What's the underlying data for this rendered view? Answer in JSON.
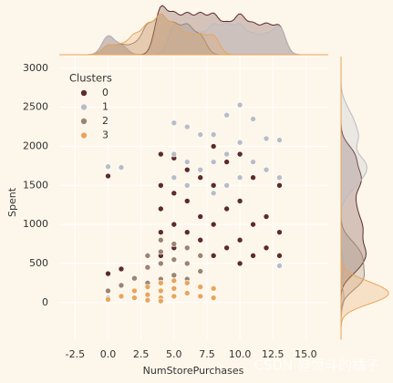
{
  "chart_data": {
    "type": "scatter",
    "x_label": "NumStorePurchases",
    "y_label": "Spent",
    "legend_title": "Clusters",
    "legend": "upper left",
    "grid": true,
    "xlim": [
      -3.7,
      16.7
    ],
    "ylim": [
      -470,
      3150
    ],
    "xticks": [
      -2.5,
      {
        "value": 0,
        "label": "0.0"
      },
      2.5,
      {
        "value": 5,
        "label": "5.0"
      },
      7.5,
      {
        "value": 10,
        "label": "10.0"
      },
      12.5,
      {
        "value": 15,
        "label": "15.0"
      }
    ],
    "yticks": [
      0,
      500,
      1000,
      1500,
      2000,
      2500,
      3000
    ],
    "series": [
      {
        "name": "0",
        "color": "#5e2a2a",
        "x": [
          0,
          0,
          1,
          4,
          4,
          4,
          4,
          4,
          5,
          5,
          5,
          5,
          6,
          6,
          6,
          6,
          7,
          7,
          7,
          7,
          8,
          8,
          8,
          8,
          9,
          9,
          9,
          10,
          10,
          10,
          10,
          11,
          11,
          11,
          12,
          12,
          12,
          13,
          13,
          13
        ],
        "y": [
          1620,
          370,
          430,
          1900,
          1500,
          1200,
          900,
          600,
          1850,
          1400,
          1000,
          700,
          1700,
          1300,
          900,
          500,
          1600,
          1100,
          800,
          400,
          2000,
          1500,
          1000,
          600,
          1800,
          1200,
          700,
          1900,
          1300,
          800,
          500,
          1600,
          1000,
          600,
          1700,
          1100,
          700,
          1500,
          900,
          600
        ]
      },
      {
        "name": "1",
        "color": "#b8bcc6",
        "x": [
          0,
          1,
          0,
          5,
          5,
          5,
          6,
          6,
          6,
          7,
          7,
          8,
          8,
          8,
          9,
          9,
          9,
          10,
          10,
          10,
          11,
          11,
          12,
          12,
          13,
          13,
          13
        ],
        "y": [
          1740,
          1730,
          60,
          2300,
          1900,
          1600,
          2250,
          1800,
          1500,
          2150,
          1700,
          2150,
          1800,
          1400,
          2400,
          1900,
          1500,
          2530,
          2050,
          1600,
          2350,
          1800,
          2100,
          1700,
          2080,
          1600,
          470
        ]
      },
      {
        "name": "2",
        "color": "#9c8470",
        "x": [
          2,
          3,
          3,
          3,
          4,
          4,
          4,
          4,
          5,
          5,
          5,
          6,
          6,
          6,
          7,
          7,
          1,
          0
        ],
        "y": [
          310,
          600,
          450,
          250,
          800,
          650,
          500,
          300,
          750,
          550,
          350,
          700,
          500,
          300,
          600,
          400,
          220,
          150
        ]
      },
      {
        "name": "3",
        "color": "#e8a55c",
        "x": [
          0,
          1,
          2,
          2,
          3,
          3,
          3,
          4,
          4,
          4,
          5,
          5,
          5,
          6,
          6,
          7,
          7,
          8,
          8,
          4
        ],
        "y": [
          40,
          80,
          150,
          60,
          200,
          100,
          30,
          250,
          150,
          60,
          280,
          180,
          80,
          250,
          120,
          200,
          80,
          180,
          60,
          20
        ]
      }
    ]
  },
  "watermark": "CSDN @愤斗的橘子"
}
